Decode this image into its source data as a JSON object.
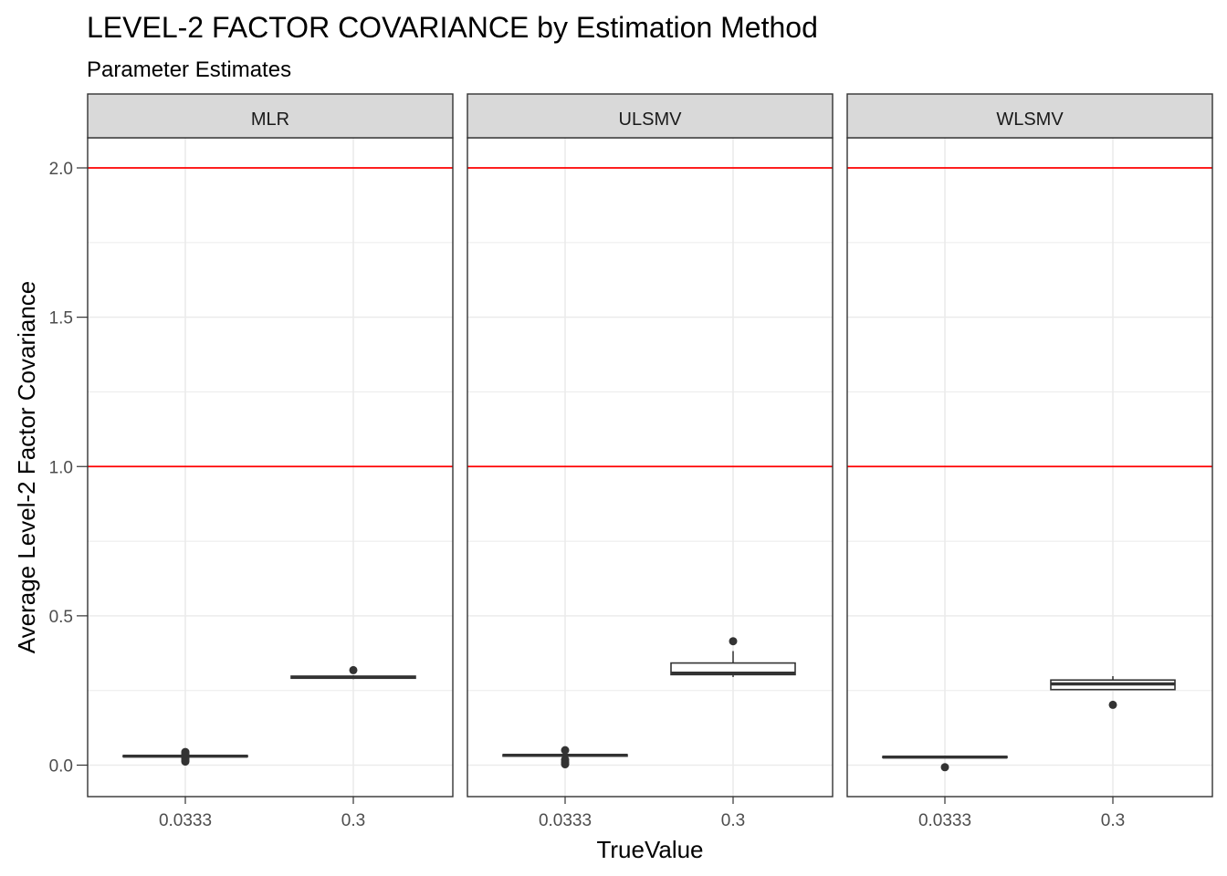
{
  "chart_data": {
    "type": "boxplot",
    "title": "LEVEL-2 FACTOR COVARIANCE by Estimation Method",
    "subtitle": "Parameter Estimates",
    "xlabel": "TrueValue",
    "ylabel": "Average Level-2 Factor Covariance",
    "categories": [
      "0.0333",
      "0.3"
    ],
    "y_ticks": [
      "0.0",
      "0.5",
      "1.0",
      "1.5",
      "2.0"
    ],
    "ylim": [
      -0.105,
      2.21
    ],
    "reference_lines": [
      1.0,
      2.0
    ],
    "grid": true,
    "colors": {
      "reference_line": "#ff0000",
      "strip_fill": "#d9d9d9",
      "box": "#333333",
      "grid": "#ebebeb"
    },
    "panels": [
      {
        "label": "MLR",
        "boxes": [
          {
            "category": "0.0333",
            "min": 0.028,
            "q1": 0.028,
            "median": 0.03,
            "q3": 0.032,
            "max": 0.034,
            "outliers": [
              0.012,
              0.016,
              0.02,
              0.024,
              0.038,
              0.041,
              0.044
            ]
          },
          {
            "category": "0.3",
            "min": 0.288,
            "q1": 0.291,
            "median": 0.294,
            "q3": 0.298,
            "max": 0.301,
            "outliers": [
              0.318
            ]
          }
        ]
      },
      {
        "label": "ULSMV",
        "boxes": [
          {
            "category": "0.0333",
            "min": 0.03,
            "q1": 0.03,
            "median": 0.033,
            "q3": 0.035,
            "max": 0.036,
            "outliers": [
              0.003,
              0.01,
              0.018,
              0.05
            ]
          },
          {
            "category": "0.3",
            "min": 0.295,
            "q1": 0.303,
            "median": 0.308,
            "q3": 0.342,
            "max": 0.382,
            "outliers": [
              0.415
            ]
          }
        ]
      },
      {
        "label": "WLSMV",
        "boxes": [
          {
            "category": "0.0333",
            "min": 0.024,
            "q1": 0.025,
            "median": 0.027,
            "q3": 0.029,
            "max": 0.03,
            "outliers": [
              -0.007
            ]
          },
          {
            "category": "0.3",
            "min": 0.252,
            "q1": 0.253,
            "median": 0.272,
            "q3": 0.285,
            "max": 0.298,
            "outliers": [
              0.202
            ]
          }
        ]
      }
    ]
  }
}
